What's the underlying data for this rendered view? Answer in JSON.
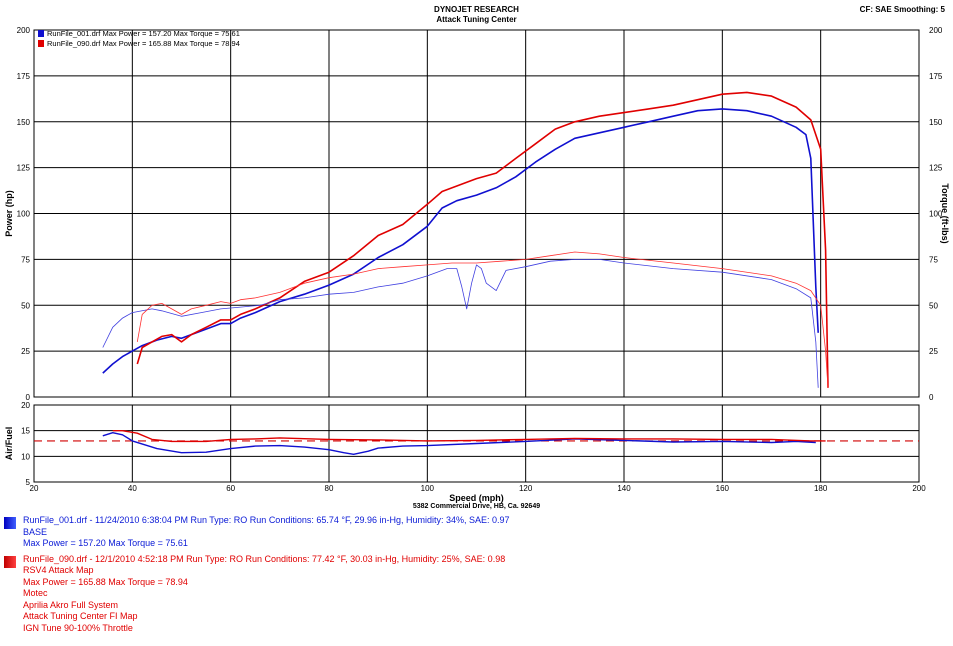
{
  "header": {
    "company": "DYNOJET RESEARCH",
    "shop": "Attack Tuning Center",
    "correction": "CF: SAE  Smoothing: 5",
    "address": "5382 Commercial Drive, HB, Ca. 92649"
  },
  "colors": {
    "run1": "#1010d0",
    "run2": "#e00000",
    "afr_ref": "#d00000",
    "grid": "#000000"
  },
  "legend": [
    {
      "label": "RunFile_001.drf Max Power = 157.20    Max Torque = 75.61",
      "color": "#1010d0"
    },
    {
      "label": "RunFile_090.drf Max Power = 165.88    Max Torque = 78.94",
      "color": "#e00000"
    }
  ],
  "runs": [
    {
      "line1": "RunFile_001.drf - 11/24/2010 6:38:04 PM  Run Type: RO  Run Conditions: 65.74 °F, 29.96 in-Hg,  Humidity:  34%, SAE: 0.97",
      "notes": [
        "BASE",
        "Max Power = 157.20   Max Torque = 75.61"
      ],
      "color": "#0a1ad6"
    },
    {
      "line1": "RunFile_090.drf - 12/1/2010 4:52:18 PM  Run Type: RO  Run Conditions: 77.42 °F, 30.03 in-Hg,  Humidity:  25%, SAE: 0.98",
      "notes": [
        "RSV4 Attack Map",
        "Max Power = 165.88   Max Torque = 78.94",
        "Motec",
        "Aprilia Akro Full System",
        "Attack Tuning Center FI Map",
        "IGN Tune 90-100% Throttle"
      ],
      "color": "#e00000"
    }
  ],
  "chart_data": [
    {
      "type": "line",
      "title": "DYNOJET RESEARCH - Attack Tuning Center",
      "xlabel": "Speed (mph)",
      "ylabel": "Power (hp)",
      "y2label": "Torque (ft-lbs)",
      "xlim": [
        20,
        200
      ],
      "ylim": [
        0,
        200
      ],
      "xticks": [
        20,
        40,
        60,
        80,
        100,
        120,
        140,
        160,
        180,
        200
      ],
      "yticks": [
        0,
        25,
        50,
        75,
        100,
        125,
        150,
        175,
        200
      ],
      "grid": true,
      "legend_position": "top-left",
      "series": [
        {
          "name": "RunFile_001 Power (hp)",
          "color": "#1010d0",
          "width": 1.6,
          "x": [
            34,
            36,
            38,
            40,
            42,
            45,
            48,
            50,
            52,
            55,
            58,
            60,
            62,
            65,
            70,
            75,
            80,
            85,
            90,
            95,
            100,
            103,
            106,
            110,
            114,
            118,
            122,
            126,
            130,
            135,
            140,
            145,
            150,
            155,
            160,
            165,
            170,
            175,
            177,
            178,
            179,
            179.5
          ],
          "values": [
            13,
            18,
            22,
            25,
            28,
            31,
            33,
            32,
            34,
            37,
            40,
            40,
            43,
            46,
            52,
            56,
            61,
            67,
            76,
            83,
            93,
            103,
            107,
            110,
            114,
            120,
            128,
            135,
            141,
            144,
            147,
            150,
            153,
            156,
            157,
            156,
            153,
            147,
            143,
            130,
            60,
            35
          ]
        },
        {
          "name": "RunFile_090 Power (hp)",
          "color": "#e00000",
          "width": 1.6,
          "x": [
            41,
            42,
            44,
            46,
            48,
            50,
            52,
            55,
            58,
            60,
            62,
            65,
            70,
            75,
            80,
            85,
            90,
            95,
            100,
            103,
            106,
            110,
            114,
            118,
            122,
            126,
            130,
            135,
            140,
            145,
            150,
            155,
            160,
            165,
            170,
            175,
            178,
            180,
            181,
            181.5
          ],
          "values": [
            18,
            27,
            30,
            33,
            34,
            30,
            34,
            38,
            42,
            42,
            45,
            48,
            54,
            63,
            68,
            77,
            88,
            94,
            105,
            112,
            115,
            119,
            122,
            130,
            138,
            146,
            150,
            153,
            155,
            157,
            159,
            162,
            165,
            166,
            164,
            158,
            151,
            135,
            80,
            5
          ]
        },
        {
          "name": "RunFile_001 Torque (ft-lbs)",
          "color": "#4040e0",
          "width": 0.8,
          "x": [
            34,
            36,
            38,
            40,
            44,
            46,
            50,
            54,
            58,
            62,
            66,
            70,
            75,
            80,
            85,
            90,
            95,
            100,
            104,
            106,
            107,
            108,
            109,
            110,
            111,
            112,
            114,
            116,
            120,
            125,
            130,
            135,
            140,
            150,
            160,
            170,
            175,
            178,
            179,
            179.5
          ],
          "values": [
            27,
            38,
            43,
            46,
            48,
            47,
            44,
            46,
            48,
            49,
            50,
            53,
            54,
            56,
            57,
            60,
            62,
            66,
            70,
            70,
            60,
            48,
            62,
            72,
            70,
            62,
            58,
            69,
            71,
            74,
            75,
            75,
            73,
            70,
            68,
            64,
            59,
            54,
            30,
            5
          ]
        },
        {
          "name": "RunFile_090 Torque (ft-lbs)",
          "color": "#ff3030",
          "width": 0.8,
          "x": [
            41,
            42,
            44,
            46,
            48,
            50,
            52,
            55,
            58,
            60,
            62,
            65,
            70,
            75,
            80,
            85,
            90,
            95,
            100,
            105,
            110,
            115,
            120,
            125,
            130,
            135,
            140,
            150,
            160,
            170,
            175,
            178,
            180,
            181,
            181.5
          ],
          "values": [
            30,
            45,
            50,
            51,
            48,
            45,
            48,
            50,
            52,
            51,
            53,
            54,
            57,
            62,
            65,
            67,
            70,
            71,
            72,
            73,
            73,
            74,
            75,
            77,
            79,
            78,
            76,
            73,
            70,
            66,
            62,
            58,
            50,
            25,
            5
          ]
        }
      ]
    },
    {
      "type": "line",
      "title": "Air/Fuel",
      "xlabel": "Speed (mph)",
      "ylabel": "Air/Fuel",
      "xlim": [
        20,
        200
      ],
      "ylim": [
        5,
        20
      ],
      "yticks": [
        5,
        10,
        15,
        20
      ],
      "grid": true,
      "reference_line": {
        "value": 13,
        "style": "dashed",
        "color": "#d00000"
      },
      "series": [
        {
          "name": "RunFile_001 AFR",
          "color": "#1010d0",
          "x": [
            34,
            36,
            38,
            40,
            45,
            50,
            55,
            60,
            65,
            70,
            75,
            80,
            83,
            85,
            88,
            90,
            95,
            100,
            110,
            120,
            130,
            140,
            150,
            160,
            170,
            175,
            179
          ],
          "values": [
            14.0,
            14.6,
            14.2,
            13.0,
            11.5,
            10.7,
            10.8,
            11.5,
            12.0,
            12.1,
            11.8,
            11.3,
            10.7,
            10.4,
            11.0,
            11.6,
            12.0,
            12.1,
            12.5,
            12.9,
            13.4,
            13.1,
            12.8,
            12.9,
            12.7,
            12.9,
            12.7
          ]
        },
        {
          "name": "RunFile_090 AFR",
          "color": "#e00000",
          "x": [
            36,
            38,
            41,
            44,
            48,
            55,
            60,
            65,
            70,
            80,
            90,
            100,
            110,
            120,
            130,
            140,
            150,
            160,
            170,
            178,
            181
          ],
          "values": [
            15.0,
            15.0,
            14.5,
            13.3,
            12.9,
            12.9,
            13.3,
            13.4,
            13.6,
            13.3,
            13.2,
            13.0,
            13.1,
            13.3,
            13.5,
            13.4,
            13.4,
            13.3,
            13.3,
            13.0,
            13.0
          ]
        }
      ]
    }
  ]
}
